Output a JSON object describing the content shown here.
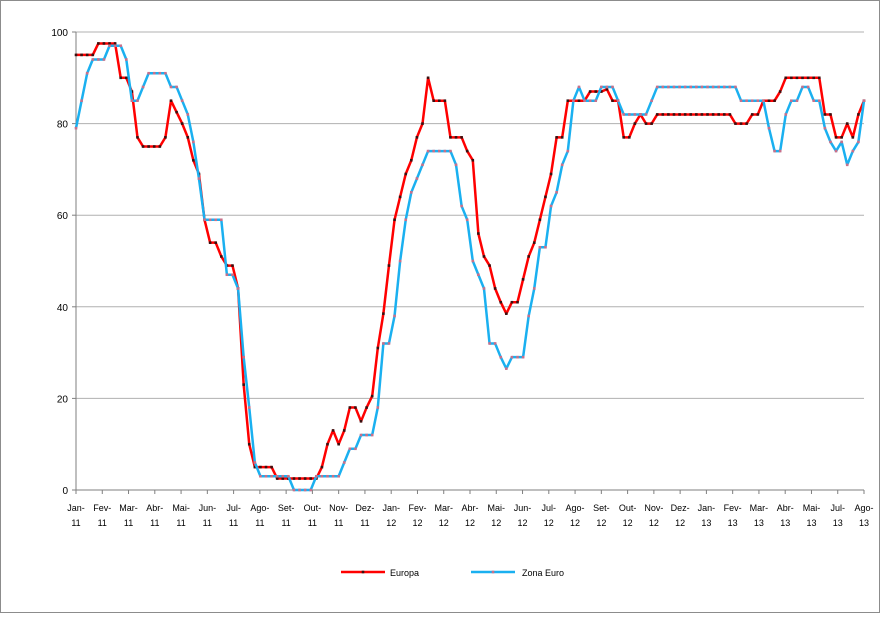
{
  "colors": {
    "europa": "#ff0000",
    "zona_euro": "#1ab0f0",
    "europa_marker": "#3a1010",
    "zona_euro_marker": "#c9708a",
    "grid": "#b0b0b0",
    "axis": "#7f7f7f"
  },
  "chart_data": {
    "type": "line",
    "title": "",
    "xlabel": "",
    "ylabel": "",
    "ylim": [
      0,
      100
    ],
    "yticks": [
      "0",
      "20",
      "40",
      "60",
      "80",
      "100"
    ],
    "y_tick_values": [
      0,
      20,
      40,
      60,
      80,
      100
    ],
    "grid": "horizontal",
    "legend_position": "bottom",
    "xtick_labels": [
      {
        "top": "Jan-",
        "bottom": "11"
      },
      {
        "top": "Fev-",
        "bottom": "11"
      },
      {
        "top": "Mar-",
        "bottom": "11"
      },
      {
        "top": "Abr-",
        "bottom": "11"
      },
      {
        "top": "Mai-",
        "bottom": "11"
      },
      {
        "top": "Jun-",
        "bottom": "11"
      },
      {
        "top": "Jul-",
        "bottom": "11"
      },
      {
        "top": "Ago-",
        "bottom": "11"
      },
      {
        "top": "Set-",
        "bottom": "11"
      },
      {
        "top": "Out-",
        "bottom": "11"
      },
      {
        "top": "Nov-",
        "bottom": "11"
      },
      {
        "top": "Dez-",
        "bottom": "11"
      },
      {
        "top": "Jan-",
        "bottom": "12"
      },
      {
        "top": "Fev-",
        "bottom": "12"
      },
      {
        "top": "Mar-",
        "bottom": "12"
      },
      {
        "top": "Abr-",
        "bottom": "12"
      },
      {
        "top": "Mai-",
        "bottom": "12"
      },
      {
        "top": "Jun-",
        "bottom": "12"
      },
      {
        "top": "Jul-",
        "bottom": "12"
      },
      {
        "top": "Ago-",
        "bottom": "12"
      },
      {
        "top": "Set-",
        "bottom": "12"
      },
      {
        "top": "Out-",
        "bottom": "12"
      },
      {
        "top": "Nov-",
        "bottom": "12"
      },
      {
        "top": "Dez-",
        "bottom": "12"
      },
      {
        "top": "Jan-",
        "bottom": "13"
      },
      {
        "top": "Fev-",
        "bottom": "13"
      },
      {
        "top": "Mar-",
        "bottom": "13"
      },
      {
        "top": "Abr-",
        "bottom": "13"
      },
      {
        "top": "Mai-",
        "bottom": "13"
      },
      {
        "top": "Jul-",
        "bottom": "13"
      },
      {
        "top": "Ago-",
        "bottom": "13"
      }
    ],
    "series": [
      {
        "name": "Europa",
        "values": [
          95,
          95,
          95,
          95,
          97.5,
          97.5,
          97.5,
          97.5,
          90,
          90,
          87,
          77,
          75,
          75,
          75,
          75,
          77,
          85,
          82.5,
          80,
          77,
          72,
          69,
          59,
          54,
          54,
          51,
          49,
          49,
          44,
          23,
          10,
          5,
          5,
          5,
          5,
          2.5,
          2.5,
          2.5,
          2.5,
          2.5,
          2.5,
          2.5,
          2.5,
          5,
          10,
          13,
          10,
          13,
          18,
          18,
          15,
          18,
          20.5,
          31,
          38.5,
          49,
          59,
          64,
          69,
          72,
          77,
          80,
          90,
          85,
          85,
          85,
          77,
          77,
          77,
          74,
          72,
          56,
          51,
          49,
          44,
          41,
          38.5,
          41,
          41,
          46,
          51,
          54,
          59,
          64,
          69,
          77,
          77,
          85,
          85,
          85,
          85,
          87,
          87,
          87,
          87.5,
          85,
          85,
          77,
          77,
          80,
          82,
          80,
          80,
          82,
          82,
          82,
          82,
          82,
          82,
          82,
          82,
          82,
          82,
          82,
          82,
          82,
          82,
          80,
          80,
          80,
          82,
          82,
          85,
          85,
          85,
          87,
          90,
          90,
          90,
          90,
          90,
          90,
          90,
          82,
          82,
          77,
          77,
          80,
          77,
          82,
          85
        ]
      },
      {
        "name": "Zona Euro",
        "values": [
          79,
          85,
          91,
          94,
          94,
          94,
          97,
          97,
          97,
          94,
          85,
          85,
          88,
          91,
          91,
          91,
          91,
          88,
          88,
          85,
          82,
          76,
          68,
          59,
          59,
          59,
          59,
          47,
          47,
          44,
          29,
          18,
          6,
          3,
          3,
          3,
          3,
          3,
          3,
          0,
          0,
          0,
          0,
          3,
          3,
          3,
          3,
          3,
          6,
          9,
          9,
          12,
          12,
          12,
          18,
          32,
          32,
          38,
          50,
          59,
          65,
          68,
          71,
          74,
          74,
          74,
          74,
          74,
          71,
          62,
          59,
          50,
          47,
          44,
          32,
          32,
          29,
          26.5,
          29,
          29,
          29,
          38,
          44,
          53,
          53,
          62,
          65,
          71,
          74,
          85,
          88,
          85,
          85,
          85,
          88,
          88,
          88,
          85,
          82,
          82,
          82,
          82,
          82,
          85,
          88,
          88,
          88,
          88,
          88,
          88,
          88,
          88,
          88,
          88,
          88,
          88,
          88,
          88,
          88,
          85,
          85,
          85,
          85,
          85,
          79,
          74,
          74,
          82,
          85,
          85,
          88,
          88,
          85,
          85,
          79,
          76,
          74,
          76,
          71,
          74,
          76,
          85
        ]
      }
    ]
  }
}
